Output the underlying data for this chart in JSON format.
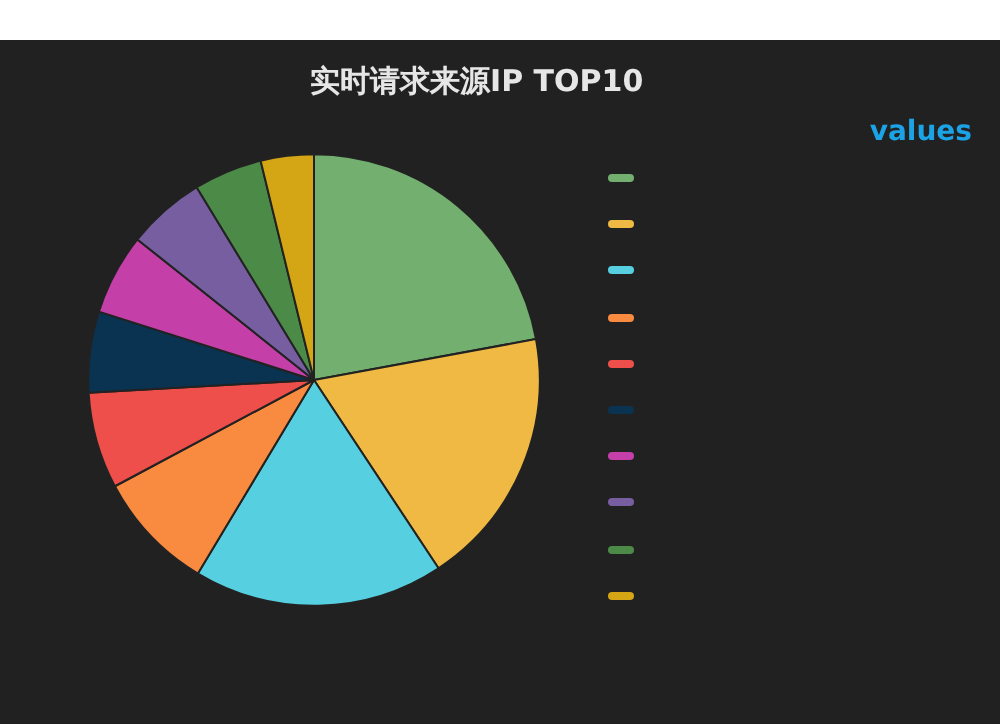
{
  "chart_data": {
    "type": "pie",
    "title": "实时请求来源IP TOP10",
    "annotations": [
      "values"
    ],
    "categories": [
      null,
      null,
      null,
      null,
      null,
      null,
      null,
      null,
      null,
      null
    ],
    "values": [
      22.1,
      18.6,
      17.9,
      8.6,
      6.9,
      5.8,
      5.8,
      5.6,
      4.9,
      3.8
    ],
    "colors": [
      "#73b06f",
      "#efb943",
      "#56d0e0",
      "#f88b40",
      "#ef4f4a",
      "#0a3352",
      "#c43fa7",
      "#765ea0",
      "#4c8a48",
      "#d4a514"
    ]
  }
}
